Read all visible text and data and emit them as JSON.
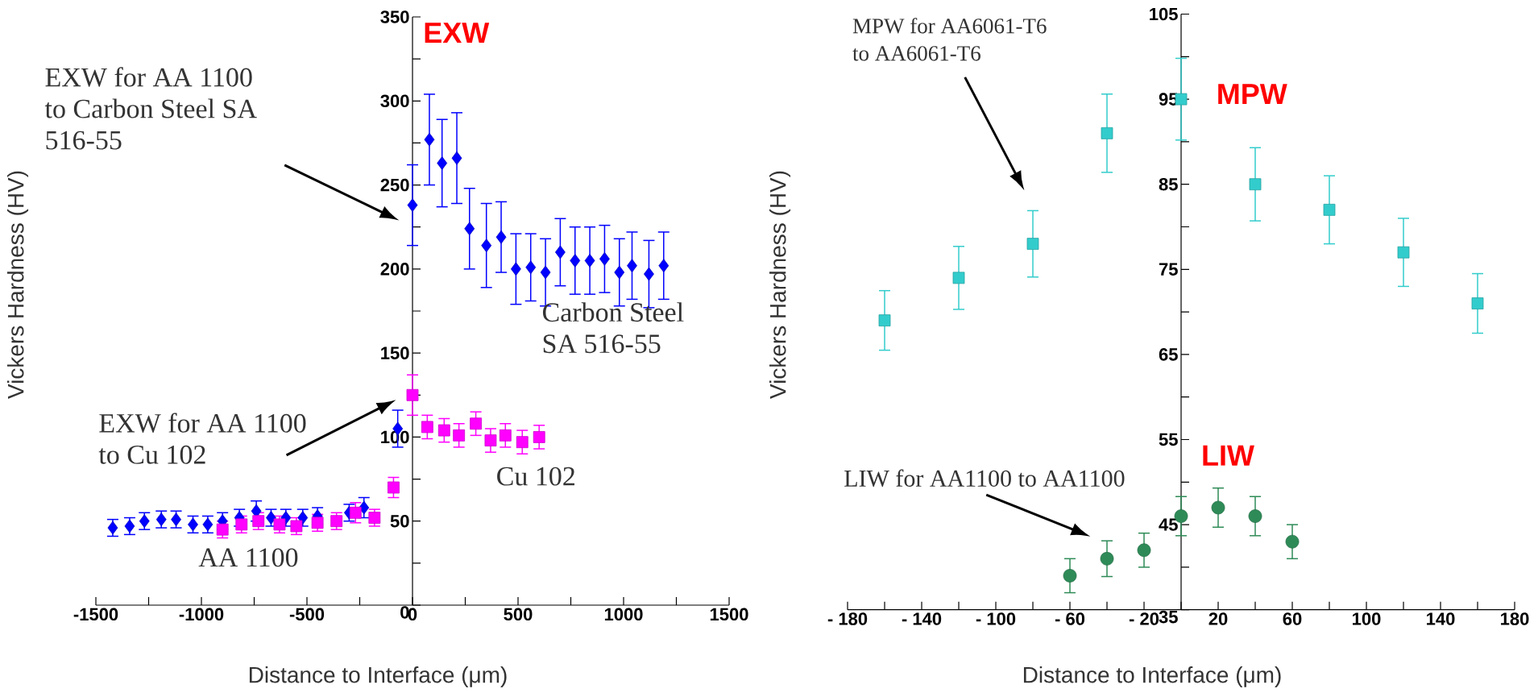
{
  "chart_data": [
    {
      "type": "scatter",
      "xlabel": "Distance to Interface (μm)",
      "ylabel": "Vickers Hardness (HV)",
      "xlim": [
        -1500,
        1500
      ],
      "ylim": [
        0,
        350
      ],
      "xticks": [
        -1500,
        {
          "value": -1250,
          "label": null
        },
        -1000,
        {
          "value": -750,
          "label": null
        },
        -500,
        {
          "value": -250,
          "label": null
        },
        0,
        {
          "value": 250,
          "label": null
        },
        500,
        {
          "value": 750,
          "label": null
        },
        1000,
        {
          "value": 1250,
          "label": null
        },
        1500
      ],
      "yticks": [
        0,
        {
          "value": 25,
          "label": null
        },
        50,
        {
          "value": 75,
          "label": null
        },
        100,
        {
          "value": 125,
          "label": null
        },
        150,
        {
          "value": 175,
          "label": null
        },
        200,
        {
          "value": 225,
          "label": null
        },
        250,
        {
          "value": 275,
          "label": null
        },
        300,
        {
          "value": 325,
          "label": null
        },
        350
      ],
      "series": [
        {
          "color": "#0000ff",
          "marker": "diamond",
          "x": [
            -1420,
            -1340,
            -1270,
            -1190,
            -1120,
            -1040,
            -970,
            -900,
            -820,
            -740,
            -670,
            -600,
            -520,
            -450,
            -300,
            -230,
            -160,
            -70,
            0,
            80,
            140,
            210,
            270,
            350,
            420,
            490,
            560,
            630,
            700,
            770,
            840,
            910,
            980,
            1040,
            1120,
            1190
          ],
          "values": [
            46,
            47,
            50,
            51,
            51,
            48,
            48,
            50,
            52,
            56,
            52,
            52,
            52,
            53,
            55,
            58,
            null,
            105,
            238,
            277,
            263,
            266,
            224,
            214,
            219,
            200,
            201,
            198,
            210,
            205,
            205,
            206,
            198,
            202,
            197,
            202
          ],
          "errors": [
            5,
            5,
            5,
            5,
            5,
            5,
            5,
            5,
            5,
            6,
            5,
            5,
            5,
            5,
            5,
            6,
            null,
            11,
            24,
            27,
            26,
            27,
            24,
            25,
            21,
            21,
            20,
            20,
            20,
            20,
            20,
            20,
            20,
            20,
            20,
            20
          ]
        },
        {
          "color": "#ff00ff",
          "marker": "square",
          "x": [
            -900,
            -810,
            -730,
            -630,
            -550,
            -450,
            -360,
            -270,
            -180,
            -90,
            0,
            70,
            150,
            220,
            300,
            370,
            440,
            520,
            600
          ],
          "values": [
            45,
            48,
            50,
            48,
            47,
            49,
            50,
            55,
            52,
            70,
            125,
            106,
            104,
            101,
            108,
            98,
            101,
            97,
            100
          ],
          "errors": [
            5,
            5,
            5,
            5,
            5,
            5,
            5,
            6,
            5,
            6,
            12,
            7,
            7,
            7,
            7,
            7,
            7,
            7,
            7
          ]
        }
      ],
      "annotations": [
        "EXW",
        "EXW for AA 1100 to Carbon Steel SA 516-55",
        "EXW for AA 1100 to Cu 102",
        "Carbon Steel SA 516-55",
        "Cu 102",
        "AA 1100"
      ]
    },
    {
      "type": "scatter",
      "xlabel": "Distance to Interface (μm)",
      "ylabel": "Vickers Hardness (HV)",
      "xlim": [
        -180,
        180
      ],
      "ylim": [
        35,
        105
      ],
      "xticks": [
        {
          "value": -180,
          "label": "- 180"
        },
        {
          "value": -160,
          "label": null
        },
        {
          "value": -140,
          "label": "- 140"
        },
        {
          "value": -120,
          "label": null
        },
        {
          "value": -100,
          "label": "- 100"
        },
        {
          "value": -80,
          "label": null
        },
        {
          "value": -60,
          "label": "- 60"
        },
        {
          "value": -40,
          "label": null
        },
        {
          "value": -20,
          "label": "- 20"
        },
        {
          "value": 0,
          "label": null
        },
        20,
        {
          "value": 40,
          "label": null
        },
        60,
        {
          "value": 80,
          "label": null
        },
        100,
        {
          "value": 120,
          "label": null
        },
        140,
        {
          "value": 160,
          "label": null
        },
        180
      ],
      "yticks": [
        35,
        {
          "value": 40,
          "label": null
        },
        45,
        {
          "value": 50,
          "label": null
        },
        55,
        {
          "value": 60,
          "label": null
        },
        65,
        {
          "value": 70,
          "label": null
        },
        75,
        {
          "value": 80,
          "label": null
        },
        85,
        {
          "value": 90,
          "label": null
        },
        95,
        {
          "value": 100,
          "label": null
        },
        105
      ],
      "series": [
        {
          "color": "#33cccc",
          "marker": "square",
          "x": [
            -160,
            -120,
            -80,
            -40,
            0,
            40,
            80,
            120,
            160
          ],
          "values": [
            69,
            74,
            78,
            91,
            95,
            85,
            82,
            77,
            71
          ],
          "errors": [
            3.5,
            3.7,
            3.9,
            4.6,
            4.8,
            4.3,
            4,
            4,
            3.5
          ]
        },
        {
          "color": "#2e8b57",
          "marker": "circle",
          "x": [
            -60,
            -40,
            -20,
            0,
            20,
            40,
            60
          ],
          "values": [
            39,
            41,
            42,
            46,
            47,
            46,
            43
          ],
          "errors": [
            2,
            2.1,
            2,
            2.3,
            2.3,
            2.3,
            2
          ]
        }
      ],
      "annotations": [
        "MPW for AA6061-T6 to AA6061-T6",
        "MPW",
        "LIW",
        "LIW for AA1100 to AA1100"
      ]
    }
  ]
}
